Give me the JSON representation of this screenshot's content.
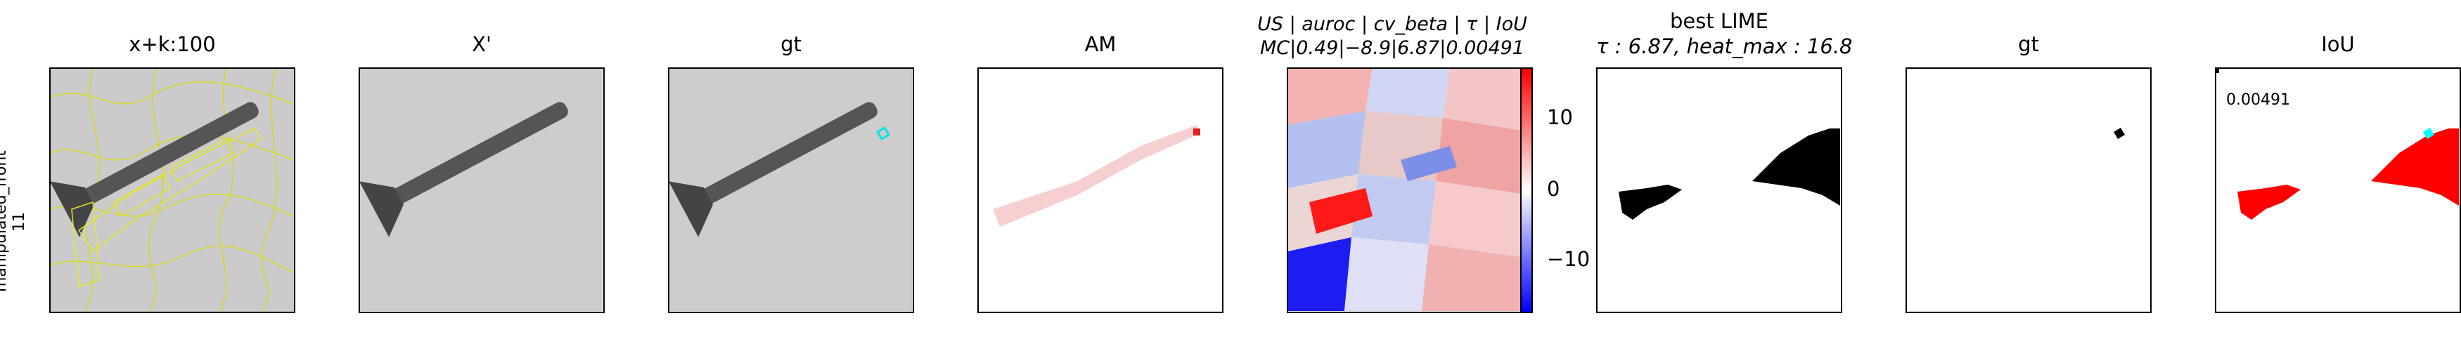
{
  "row_label": {
    "line1": "manipulated_front",
    "line2": "11"
  },
  "panels": [
    {
      "title": "x+k:100"
    },
    {
      "title": "X'"
    },
    {
      "title": "gt"
    },
    {
      "title": "AM"
    },
    {
      "title_line1": "US | auroc | cv_beta | τ | IoU",
      "title_line2": "MC|0.49|−8.9|6.87|0.00491"
    },
    {
      "title_line1": "best LIME",
      "title_line2": "τ : 6.87, heat_max : 16.8"
    },
    {
      "title": "gt"
    },
    {
      "title": "IoU",
      "value": "0.00491"
    }
  ],
  "colorbar": {
    "ticks": [
      "10",
      "0",
      "−10"
    ],
    "colors": {
      "high": "#ff0000",
      "mid": "#ffffff",
      "low": "#0000ff"
    }
  },
  "colors": {
    "overlay": "#ffff00",
    "gt_marker": "#00ffff",
    "iou_pred": "#ff0000",
    "mask": "#000000"
  }
}
